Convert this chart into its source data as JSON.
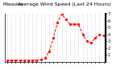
{
  "title": "Average Wind Speed (Last 24 Hours)",
  "title_left": "Milwaukee",
  "y_values": [
    0.2,
    0.2,
    0.2,
    0.2,
    0.2,
    0.2,
    0.2,
    0.2,
    0.3,
    0.5,
    1.5,
    3.5,
    5.8,
    7.0,
    6.2,
    5.5,
    5.5,
    5.5,
    4.0,
    3.0,
    2.8,
    3.5,
    4.0,
    3.8
  ],
  "x_values": [
    0,
    1,
    2,
    3,
    4,
    5,
    6,
    7,
    8,
    9,
    10,
    11,
    12,
    13,
    14,
    15,
    16,
    17,
    18,
    19,
    20,
    21,
    22,
    23
  ],
  "line_color": "#ff0000",
  "line_style": "--",
  "marker": ".",
  "marker_size": 2.5,
  "line_width": 0.7,
  "ylim": [
    0,
    7
  ],
  "xlim_min": -0.5,
  "xlim_max": 23.5,
  "y_ticks": [
    1,
    2,
    3,
    4,
    5,
    6,
    7
  ],
  "y_tick_labels": [
    "1",
    "2",
    "3",
    "4",
    "5",
    "6",
    "7"
  ],
  "grid_color": "#aaaaaa",
  "grid_style": ":",
  "bg_color": "#ffffff",
  "title_fontsize": 4.5,
  "tick_fontsize": 3.5,
  "x_tick_every": 2
}
